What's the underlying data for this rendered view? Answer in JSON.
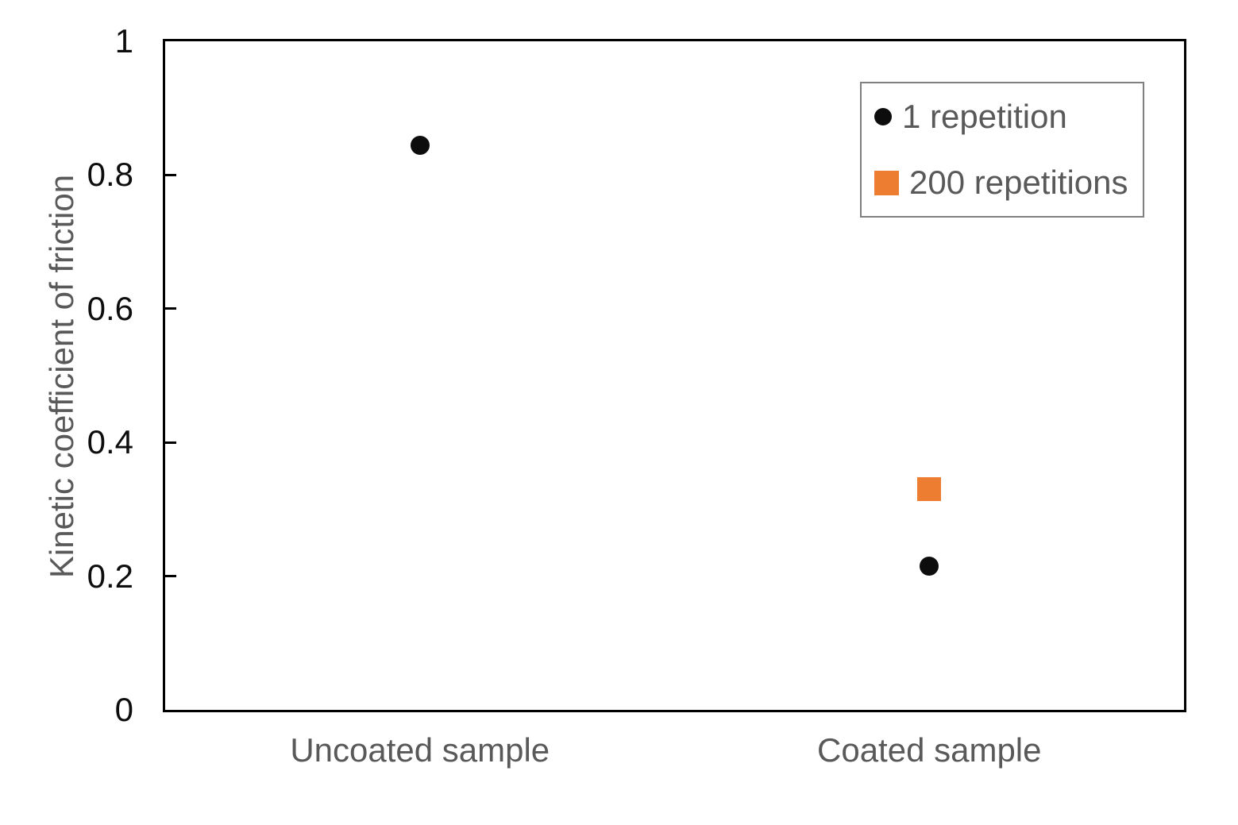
{
  "chart_data": {
    "type": "scatter",
    "title": "",
    "categories": [
      "Uncoated sample",
      "Coated sample"
    ],
    "series": [
      {
        "name": "1 repetition",
        "marker": "circle",
        "color": "#0d0d0d",
        "values": [
          0.845,
          0.215
        ]
      },
      {
        "name": "200 repetitions",
        "marker": "square",
        "color": "#ED7D31",
        "values": [
          null,
          0.33
        ]
      }
    ],
    "xlabel": "",
    "ylabel": "Kinetic coefficient of friction",
    "ylim": [
      0,
      1
    ],
    "y_ticks": [
      1,
      0.8,
      0.6,
      0.4,
      0.2,
      0
    ],
    "y_tick_labels": [
      "1",
      "0.8",
      "0.6",
      "0.4",
      "0.2",
      "0"
    ],
    "grid": "off",
    "legend_position": "top-right-inside"
  },
  "colors": {
    "background": "#ffffff",
    "axis_line": "#000000",
    "tick_label": "#0d0d0d",
    "category_label": "#595959",
    "axis_title": "#595959",
    "legend_text": "#595959",
    "legend_border": "#7f7f7f",
    "series_1": "#0d0d0d",
    "series_2": "#ED7D31"
  }
}
